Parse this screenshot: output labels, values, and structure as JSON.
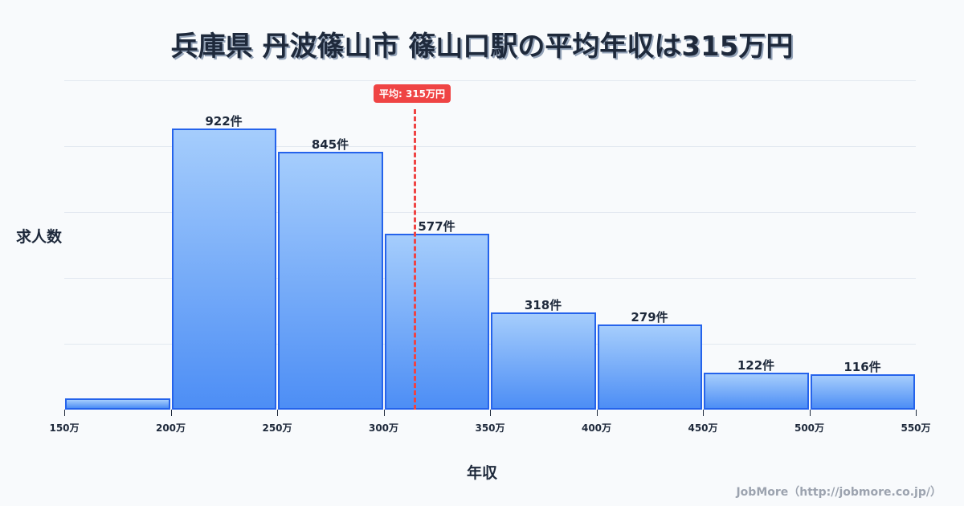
{
  "title": "兵庫県 丹波篠山市 篠山口駅の平均年収は315万円",
  "axes": {
    "ylabel": "求人数",
    "xlabel": "年収"
  },
  "credit": "JobMore（http://jobmore.co.jp/）",
  "average": {
    "label": "平均: 315万円",
    "value": 315,
    "color": "#ef4444"
  },
  "colors": {
    "bar_fill_top": "#a5cdfc",
    "bar_fill_bottom": "#4d8ef5",
    "bar_border": "#2563eb",
    "background": "#f8fafc"
  },
  "bars": [
    {
      "range": "150万-200万",
      "count": 37,
      "label": ""
    },
    {
      "range": "200万-250万",
      "count": 922,
      "label": "922件"
    },
    {
      "range": "250万-300万",
      "count": 845,
      "label": "845件"
    },
    {
      "range": "300万-350万",
      "count": 577,
      "label": "577件"
    },
    {
      "range": "350万-400万",
      "count": 318,
      "label": "318件"
    },
    {
      "range": "400万-450万",
      "count": 279,
      "label": "279件"
    },
    {
      "range": "450万-500万",
      "count": 122,
      "label": "122件"
    },
    {
      "range": "500万-550万",
      "count": 116,
      "label": "116件"
    }
  ],
  "ticks": [
    "150万",
    "200万",
    "250万",
    "300万",
    "350万",
    "400万",
    "450万",
    "500万",
    "550万"
  ],
  "chart_data": {
    "type": "bar",
    "title": "兵庫県 丹波篠山市 篠山口駅の平均年収は315万円",
    "xlabel": "年収",
    "ylabel": "求人数",
    "categories": [
      "150万-200万",
      "200万-250万",
      "250万-300万",
      "300万-350万",
      "350万-400万",
      "400万-450万",
      "450万-500万",
      "500万-550万"
    ],
    "values": [
      37,
      922,
      845,
      577,
      318,
      279,
      122,
      116
    ],
    "x_ticks": [
      "150万",
      "200万",
      "250万",
      "300万",
      "350万",
      "400万",
      "450万",
      "500万",
      "550万"
    ],
    "xlim": [
      150,
      550
    ],
    "ylim": [
      0,
      1080
    ],
    "grid": true,
    "legend": null,
    "annotations": [
      {
        "type": "vline",
        "x": 315,
        "label": "平均: 315万円",
        "style": "dashed",
        "color": "#ef4444"
      }
    ]
  }
}
